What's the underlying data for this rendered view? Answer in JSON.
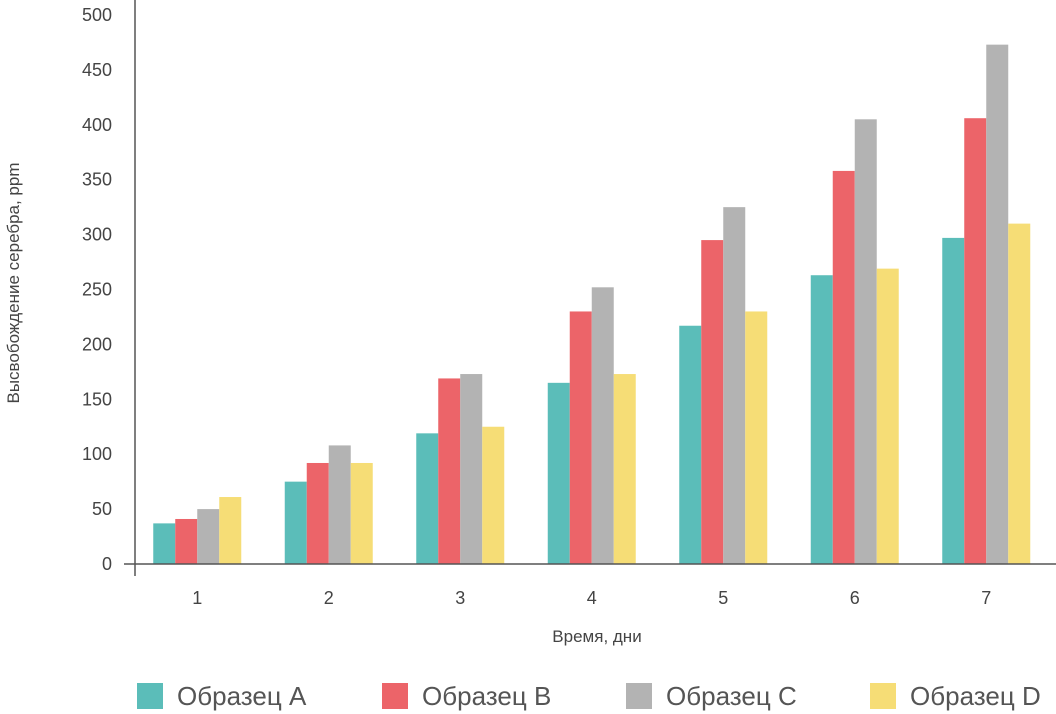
{
  "chart_data": {
    "type": "bar",
    "title": "",
    "xlabel": "Время, дни",
    "ylabel": "Высвобождение серебра, ppm",
    "categories": [
      "1",
      "2",
      "3",
      "4",
      "5",
      "6",
      "7"
    ],
    "ylim": [
      0,
      500
    ],
    "yticks": [
      0,
      50,
      100,
      150,
      200,
      250,
      300,
      350,
      400,
      450,
      500
    ],
    "grid": false,
    "legend_position": "bottom",
    "series": [
      {
        "name": "Образец A",
        "color": "#5bbdb9",
        "values": [
          37,
          75,
          119,
          165,
          217,
          263,
          297
        ]
      },
      {
        "name": "Образец B",
        "color": "#ec6469",
        "values": [
          41,
          92,
          169,
          230,
          295,
          358,
          406
        ]
      },
      {
        "name": "Образец C",
        "color": "#b3b3b3",
        "values": [
          50,
          108,
          173,
          252,
          325,
          405,
          473
        ]
      },
      {
        "name": "Образец D",
        "color": "#f6dd76",
        "values": [
          61,
          92,
          125,
          173,
          230,
          269,
          310
        ]
      }
    ]
  }
}
